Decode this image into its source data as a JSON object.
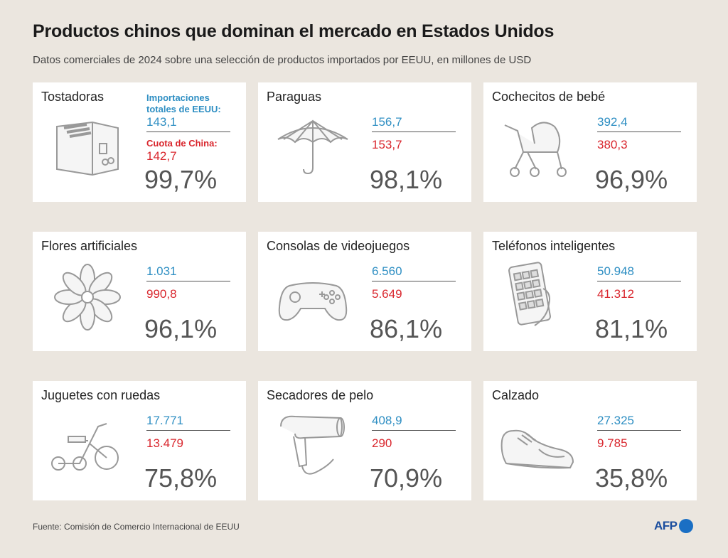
{
  "header": {
    "title": "Productos chinos que dominan el mercado en Estados Unidos",
    "subtitle": "Datos comerciales de 2024 sobre una selección de productos importados por EEUU, en millones de USD"
  },
  "legend": {
    "total_label": "Importaciones totales de EEUU:",
    "china_label": "Cuota de China:"
  },
  "colors": {
    "total": "#2f8fc3",
    "china": "#d9262d",
    "percent": "#555555",
    "background": "#ebe6df"
  },
  "footer": {
    "source": "Fuente: Comisión de Comercio Internacional de EEUU",
    "logo": "AFP"
  },
  "chart_data": {
    "type": "table",
    "columns": [
      "Producto",
      "Importaciones totales de EEUU",
      "Cuota de China",
      "Porcentaje"
    ],
    "unit": "millones de USD",
    "rows": [
      {
        "product": "Tostadoras",
        "total": "143,1",
        "china": "142,7",
        "percent": "99,7%",
        "icon": "toaster-icon"
      },
      {
        "product": "Paraguas",
        "total": "156,7",
        "china": "153,7",
        "percent": "98,1%",
        "icon": "umbrella-icon"
      },
      {
        "product": "Cochecitos de bebé",
        "total": "392,4",
        "china": "380,3",
        "percent": "96,9%",
        "icon": "stroller-icon"
      },
      {
        "product": "Flores artificiales",
        "total": "1.031",
        "china": "990,8",
        "percent": "96,1%",
        "icon": "flower-icon"
      },
      {
        "product": "Consolas de videojuegos",
        "total": "6.560",
        "china": "5.649",
        "percent": "86,1%",
        "icon": "gamepad-icon"
      },
      {
        "product": "Teléfonos inteligentes",
        "total": "50.948",
        "china": "41.312",
        "percent": "81,1%",
        "icon": "smartphone-icon"
      },
      {
        "product": "Juguetes con ruedas",
        "total": "17.771",
        "china": "13.479",
        "percent": "75,8%",
        "icon": "tricycle-icon"
      },
      {
        "product": "Secadores de pelo",
        "total": "408,9",
        "china": "290",
        "percent": "70,9%",
        "icon": "hairdryer-icon"
      },
      {
        "product": "Calzado",
        "total": "27.325",
        "china": "9.785",
        "percent": "35,8%",
        "icon": "sneaker-icon"
      }
    ]
  }
}
